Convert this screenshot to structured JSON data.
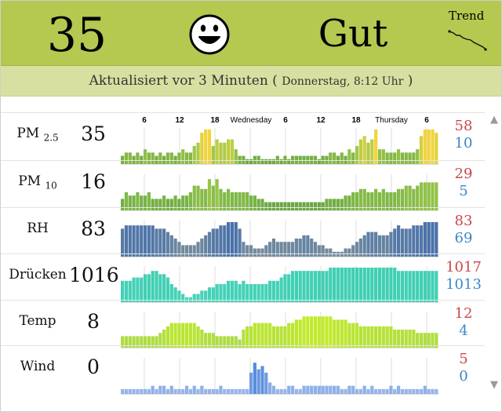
{
  "header": {
    "aqi": "35",
    "quality": "Gut",
    "trend_label": "Trend",
    "smiley_icon": "happy-face-icon",
    "accent": "#b5c84f"
  },
  "update": {
    "text": "Aktualisiert vor 3 Minuten (",
    "sub": "Donnerstag, 8:12 Uhr",
    "close": ")"
  },
  "time_axis": {
    "labels": [
      "6",
      "12",
      "18",
      "Wednesday",
      "6",
      "12",
      "18",
      "Thursday",
      "6"
    ]
  },
  "metrics": [
    {
      "id": "pm25",
      "label": "PM",
      "sub": "2.5",
      "value": "35",
      "max": "58",
      "min": "10",
      "values": [
        2,
        3,
        3,
        2,
        3,
        2,
        4,
        3,
        3,
        2,
        3,
        2,
        3,
        3,
        2,
        3,
        4,
        3,
        3,
        5,
        6,
        9,
        10,
        10,
        5,
        7,
        6,
        6,
        7,
        7,
        4,
        2,
        2,
        1,
        1,
        2,
        2,
        1,
        1,
        1,
        1,
        2,
        1,
        2,
        1,
        2,
        2,
        2,
        2,
        2,
        2,
        2,
        1,
        2,
        2,
        3,
        3,
        2,
        3,
        2,
        4,
        3,
        5,
        7,
        8,
        6,
        7,
        10,
        4,
        4,
        3,
        3,
        3,
        4,
        3,
        3,
        3,
        3,
        4,
        8,
        10,
        10,
        10,
        9
      ],
      "colors": {
        "low": "#5c9e3c",
        "mid": "#9ec84a",
        "high": "#f2d43c"
      }
    },
    {
      "id": "pm10",
      "label": "PM",
      "sub": "10",
      "value": "16",
      "max": "29",
      "min": "5",
      "values": [
        3,
        5,
        4,
        4,
        5,
        4,
        4,
        5,
        3,
        3,
        3,
        4,
        3,
        3,
        4,
        3,
        4,
        4,
        5,
        7,
        7,
        6,
        6,
        9,
        7,
        9,
        6,
        5,
        6,
        5,
        5,
        5,
        5,
        5,
        4,
        4,
        3,
        3,
        2,
        2,
        2,
        2,
        2,
        2,
        2,
        2,
        2,
        2,
        2,
        2,
        2,
        2,
        2,
        2,
        3,
        3,
        3,
        3,
        3,
        4,
        4,
        5,
        5,
        6,
        6,
        5,
        5,
        6,
        5,
        6,
        5,
        5,
        5,
        6,
        6,
        7,
        7,
        6,
        7,
        8,
        8,
        8,
        8,
        8
      ],
      "colors": {
        "low": "#5c9e3c",
        "mid": "#7fb848",
        "high": "#9ec84a"
      }
    },
    {
      "id": "rh",
      "label": "RH",
      "sub": "",
      "value": "83",
      "max": "83",
      "min": "69",
      "values": [
        8,
        9,
        9,
        9,
        9,
        9,
        9,
        9,
        9,
        8,
        8,
        8,
        7,
        6,
        5,
        4,
        3,
        3,
        3,
        3,
        4,
        5,
        6,
        7,
        8,
        8,
        9,
        9,
        10,
        10,
        10,
        8,
        4,
        3,
        3,
        2,
        2,
        2,
        3,
        4,
        5,
        4,
        4,
        4,
        4,
        4,
        5,
        5,
        6,
        6,
        5,
        4,
        3,
        3,
        2,
        2,
        1,
        1,
        1,
        2,
        2,
        3,
        4,
        5,
        6,
        7,
        7,
        7,
        6,
        6,
        6,
        7,
        8,
        9,
        8,
        8,
        8,
        9,
        9,
        9,
        10,
        10,
        10,
        10
      ],
      "colors": {
        "low": "#7a8c9a",
        "mid": "#6c879f",
        "high": "#4b72aa"
      }
    },
    {
      "id": "pressure",
      "label": "Drücken",
      "sub": "",
      "value": "1016",
      "max": "1017",
      "min": "1013",
      "values": [
        6,
        6,
        6,
        7,
        7,
        7,
        8,
        8,
        9,
        9,
        8,
        8,
        7,
        5,
        4,
        3,
        2,
        1,
        1,
        2,
        2,
        3,
        3,
        4,
        4,
        5,
        5,
        5,
        6,
        6,
        6,
        5,
        6,
        5,
        5,
        5,
        5,
        5,
        5,
        6,
        6,
        6,
        7,
        8,
        8,
        9,
        9,
        9,
        9,
        9,
        9,
        9,
        9,
        9,
        9,
        10,
        10,
        10,
        10,
        10,
        10,
        10,
        10,
        10,
        10,
        10,
        10,
        10,
        10,
        10,
        10,
        10,
        10,
        9,
        9,
        9,
        9,
        9,
        9,
        9,
        9,
        9,
        9,
        9
      ],
      "colors": {
        "low": "#4ad4b8",
        "mid": "#44d2b8",
        "high": "#40cfb2"
      }
    },
    {
      "id": "temp",
      "label": "Temp",
      "sub": "",
      "value": "8",
      "max": "12",
      "min": "4",
      "values": [
        3,
        3,
        3,
        3,
        3,
        3,
        3,
        3,
        3,
        3,
        4,
        5,
        6,
        7,
        7,
        7,
        7,
        7,
        7,
        7,
        6,
        5,
        4,
        4,
        4,
        3,
        3,
        3,
        3,
        3,
        3,
        2,
        5,
        6,
        6,
        7,
        7,
        7,
        7,
        7,
        6,
        6,
        6,
        6,
        7,
        7,
        8,
        8,
        9,
        9,
        9,
        9,
        9,
        9,
        9,
        9,
        8,
        8,
        8,
        8,
        7,
        7,
        7,
        6,
        6,
        6,
        6,
        6,
        6,
        6,
        6,
        6,
        5,
        5,
        5,
        5,
        5,
        5,
        4,
        4,
        4,
        4,
        4,
        4
      ],
      "colors": {
        "low": "#a8d64a",
        "mid": "#b3e03c",
        "high": "#c6ec28"
      }
    },
    {
      "id": "wind",
      "label": "Wind",
      "sub": "",
      "value": "0",
      "max": "5",
      "min": "0",
      "values": [
        1,
        1,
        1,
        1,
        1,
        1,
        1,
        1,
        2,
        1,
        2,
        2,
        1,
        2,
        1,
        1,
        1,
        2,
        1,
        2,
        1,
        2,
        1,
        1,
        1,
        1,
        2,
        1,
        1,
        1,
        1,
        1,
        1,
        1,
        6,
        9,
        7,
        8,
        6,
        3,
        2,
        1,
        1,
        1,
        2,
        2,
        1,
        1,
        2,
        2,
        2,
        2,
        2,
        2,
        2,
        2,
        2,
        2,
        1,
        1,
        2,
        2,
        1,
        1,
        2,
        1,
        2,
        1,
        1,
        1,
        1,
        2,
        1,
        2,
        1,
        1,
        1,
        1,
        1,
        1,
        2,
        1,
        1,
        1
      ],
      "colors": {
        "low": "#9db9ea",
        "mid": "#7aa2e6",
        "high": "#4d86d9"
      }
    }
  ],
  "scroll": {
    "up_icon": "triangle-up-icon",
    "down_icon": "triangle-down-icon"
  }
}
